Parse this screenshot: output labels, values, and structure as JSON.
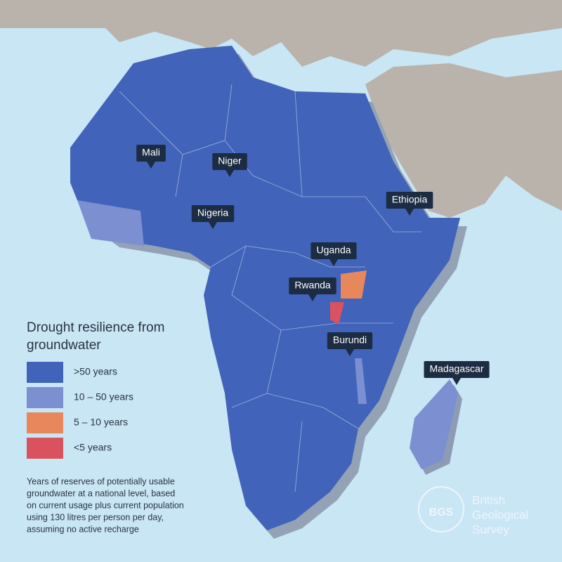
{
  "labels": [
    "Mali",
    "Niger",
    "Nigeria",
    "Ethiopia",
    "Uganda",
    "Rwanda",
    "Burundi",
    "Madagascar"
  ],
  "legend": {
    "title": [
      "Drought resilience from",
      "groundwater"
    ],
    "items": [
      {
        "label": ">50 years",
        "color": "#4163b9"
      },
      {
        "label": "10 – 50 years",
        "color": "#7b8fd1"
      },
      {
        "label": "5 – 10 years",
        "color": "#e8875c"
      },
      {
        "label": "<5 years",
        "color": "#d9525e"
      }
    ]
  },
  "note": [
    "Years of reserves of potentially usable",
    "groundwater at a national level, based",
    "on current usage plus current population",
    "using 130 litres per person per day,",
    "assuming no active recharge"
  ],
  "logo": {
    "abbr": "BGS",
    "name": [
      "British",
      "Geological",
      "Survey"
    ]
  }
}
